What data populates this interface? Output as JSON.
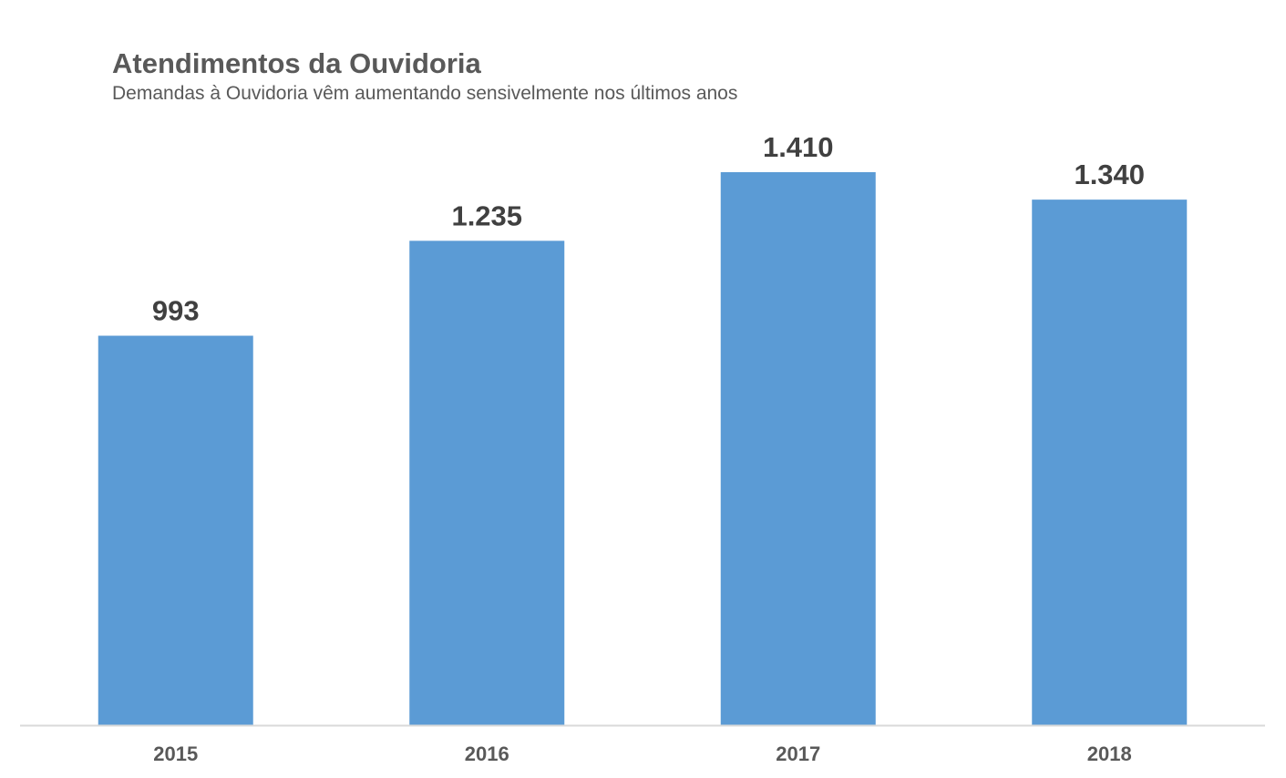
{
  "chart_data": {
    "type": "bar",
    "title": "Atendimentos da Ouvidoria",
    "subtitle": "Demandas à Ouvidoria vêm aumentando sensivelmente nos últimos anos",
    "categories": [
      "2015",
      "2016",
      "2017",
      "2018"
    ],
    "values": [
      993,
      1235,
      1410,
      1340
    ],
    "value_labels": [
      "993",
      "1.235",
      "1.410",
      "1.340"
    ],
    "xlabel": "",
    "ylabel": "",
    "ylim": [
      0,
      1410
    ],
    "grid": false,
    "legend": "none",
    "bar_color": "#5B9BD5",
    "axis_color": "#D9D9D9"
  }
}
